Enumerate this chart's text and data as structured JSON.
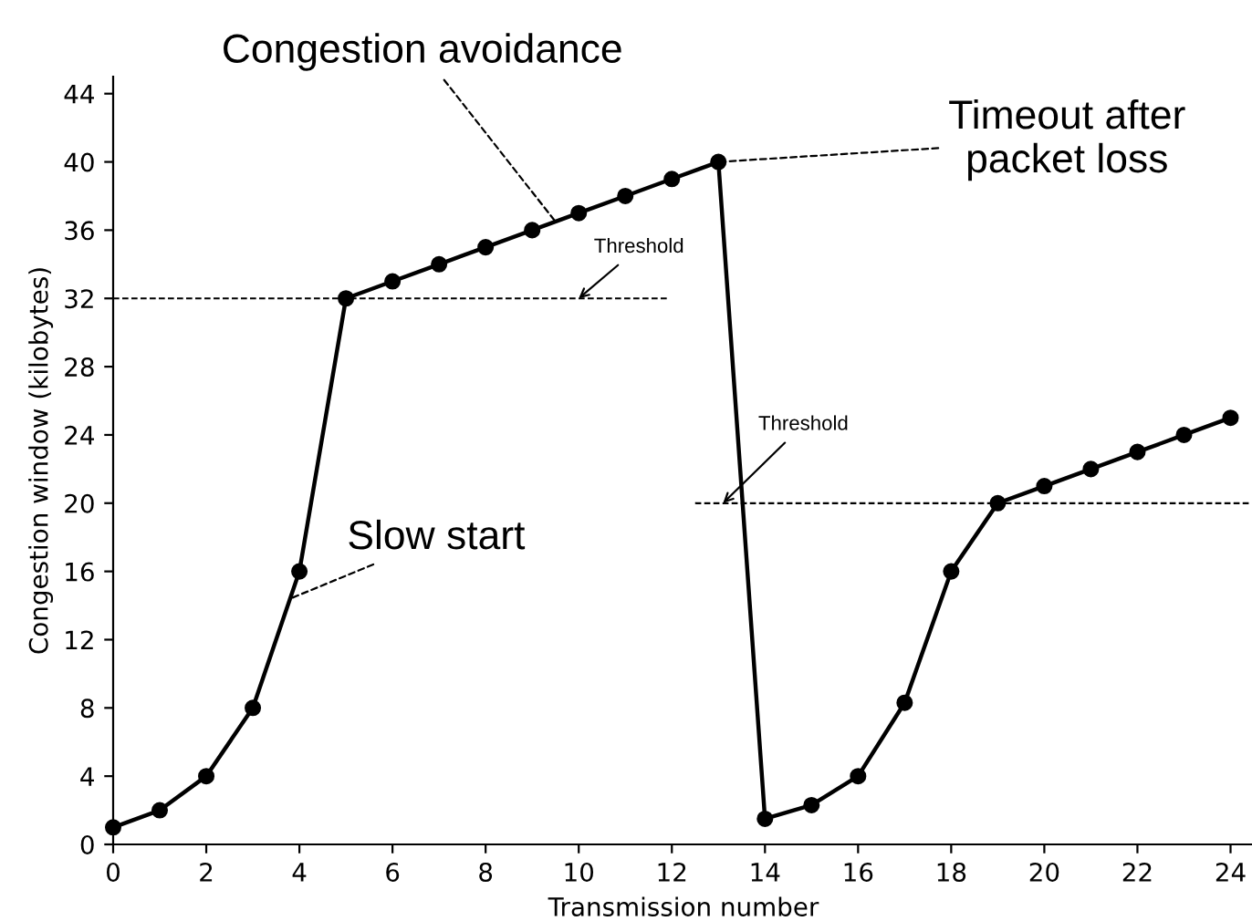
{
  "chart_data": {
    "type": "line",
    "xlabel": "Transmission number",
    "ylabel": "Congestion window (kilobytes)",
    "x": [
      0,
      1,
      2,
      3,
      4,
      5,
      6,
      7,
      8,
      9,
      10,
      11,
      12,
      13,
      14,
      15,
      16,
      17,
      18,
      19,
      20,
      21,
      22,
      23,
      24
    ],
    "series": [
      {
        "color": "#000000",
        "marker": "circle",
        "line_style": "solid",
        "values": [
          1,
          2,
          4,
          8,
          16,
          32,
          33,
          34,
          35,
          36,
          37,
          38,
          39,
          40,
          1.5,
          2.3,
          4,
          8.3,
          16,
          20,
          21,
          22,
          23,
          24,
          25
        ]
      },
      {
        "color": "#000000",
        "marker": "none",
        "line_style": "dashed",
        "x": [
          0,
          11.9
        ],
        "values": [
          32,
          32
        ]
      },
      {
        "color": "#000000",
        "marker": "none",
        "line_style": "dashed",
        "x": [
          12.5,
          24.4
        ],
        "values": [
          20,
          20
        ]
      }
    ],
    "annotations": [
      {
        "text": "Congestion avoidance",
        "x": 9.5,
        "y": 36.5
      },
      {
        "text": "Timeout after\npacket loss",
        "x": 13,
        "y": 40
      },
      {
        "text": "Slow start",
        "x": 3.8,
        "y": 14.4
      },
      {
        "text": "Threshold",
        "x": 10,
        "y": 32
      },
      {
        "text": "Threshold",
        "x": 13.1,
        "y": 20
      }
    ],
    "xlim": [
      0,
      24.5
    ],
    "ylim": [
      0,
      45
    ],
    "xticks": [
      0,
      2,
      4,
      6,
      8,
      10,
      12,
      14,
      16,
      18,
      20,
      22,
      24
    ],
    "yticks": [
      0,
      4,
      8,
      12,
      16,
      20,
      24,
      28,
      32,
      36,
      40,
      44
    ],
    "grid": false,
    "legend": false
  }
}
